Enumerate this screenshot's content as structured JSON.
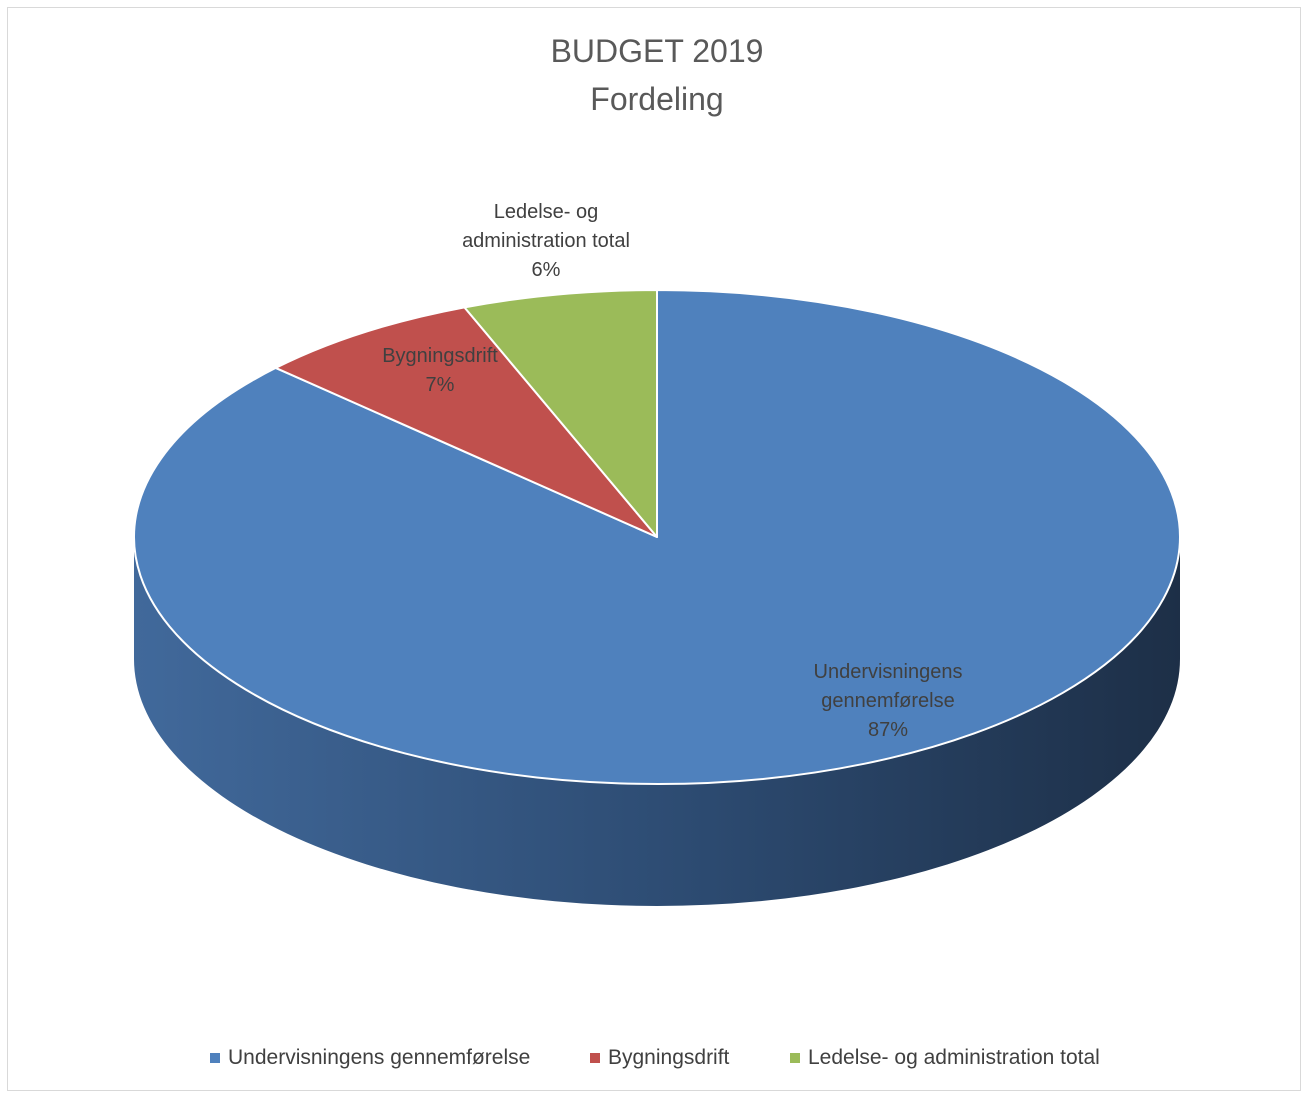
{
  "chart_data": {
    "type": "pie",
    "title": [
      "BUDGET 2019",
      "Fordeling"
    ],
    "slices": [
      {
        "label": "Undervisningens gennemførelse",
        "label_lines": [
          "Undervisningens",
          "gennemførelse"
        ],
        "value": 87,
        "value_label": "87%",
        "color": "#4f81bd",
        "side_dark": "#1d2f47",
        "side_light": "#41699b"
      },
      {
        "label": "Bygningsdrift",
        "label_lines": [
          "Bygningsdrift"
        ],
        "value": 7,
        "value_label": "7%",
        "color": "#c0504d",
        "side_dark": "#7a2d2b",
        "side_light": "#9c3f3c"
      },
      {
        "label": "Ledelse- og administration total",
        "label_lines": [
          "Ledelse- og",
          "administration total"
        ],
        "value": 6,
        "value_label": "6%",
        "color": "#9bbb59",
        "side_dark": "#5e7434",
        "side_light": "#7f9a48"
      }
    ],
    "legend_position": "bottom",
    "style": "3d"
  }
}
